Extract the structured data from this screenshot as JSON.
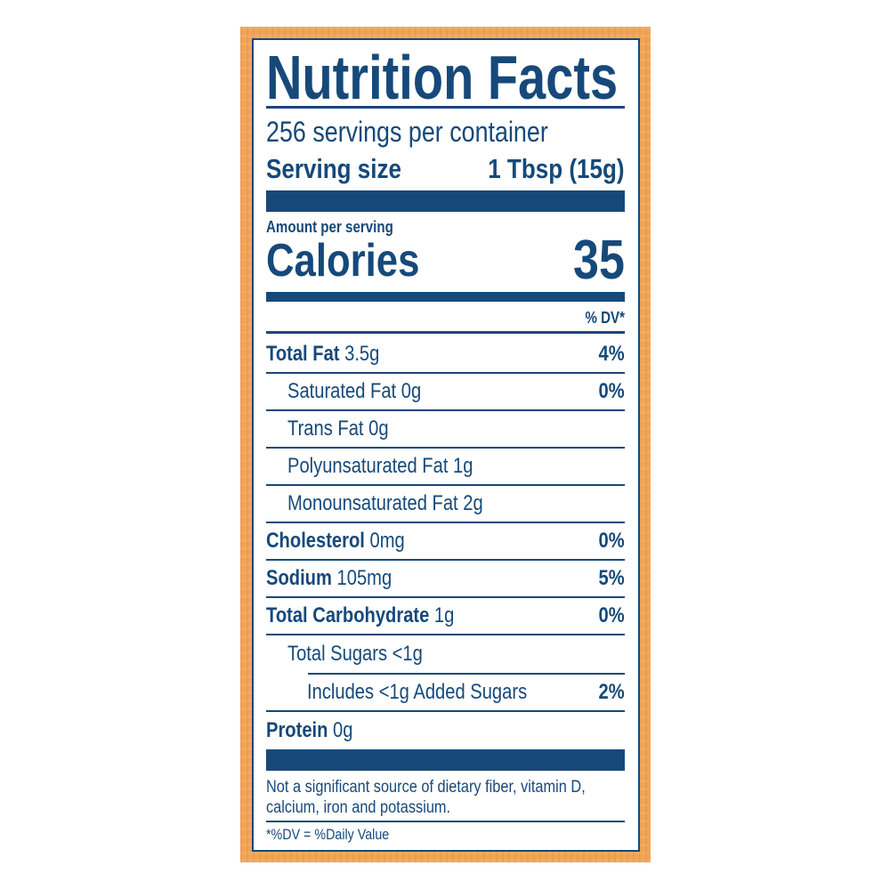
{
  "colors": {
    "ink": "#16497a",
    "frame": "#f1a456",
    "background": "#ffffff"
  },
  "label": {
    "title": "Nutrition Facts",
    "servings_per_container": "256 servings per container",
    "serving_size_label": "Serving size",
    "serving_size_value": "1 Tbsp (15g)",
    "amount_per_serving": "Amount per serving",
    "calories_label": "Calories",
    "calories_value": "35",
    "dv_header": "% DV*",
    "nutrients": [
      {
        "name": "Total Fat",
        "amount": "3.5g",
        "dv": "4%"
      },
      {
        "name": "Saturated Fat 0g",
        "amount": "",
        "dv": "0%"
      },
      {
        "name": "Trans Fat 0g",
        "amount": "",
        "dv": ""
      },
      {
        "name": "Polyunsaturated Fat 1g",
        "amount": "",
        "dv": ""
      },
      {
        "name": "Monounsaturated Fat 2g",
        "amount": "",
        "dv": ""
      },
      {
        "name": "Cholesterol",
        "amount": "0mg",
        "dv": "0%"
      },
      {
        "name": "Sodium",
        "amount": "105mg",
        "dv": "5%"
      },
      {
        "name": "Total Carbohydrate",
        "amount": "1g",
        "dv": "0%"
      },
      {
        "name": "Total Sugars <1g",
        "amount": "",
        "dv": ""
      },
      {
        "name": "Includes <1g Added Sugars",
        "amount": "",
        "dv": "2%"
      },
      {
        "name": "Protein",
        "amount": "0g",
        "dv": ""
      }
    ],
    "footnote_line1": "Not a significant source of dietary fiber, vitamin D,",
    "footnote_line2": "calcium, iron and potassium.",
    "dv_note": "*%DV = %Daily Value"
  }
}
